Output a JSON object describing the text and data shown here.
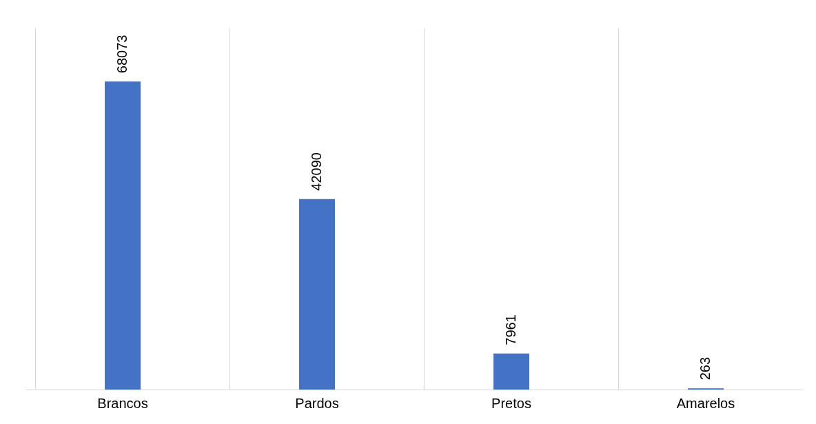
{
  "chart_data": {
    "type": "bar",
    "categories": [
      "Brancos",
      "Pardos",
      "Pretos",
      "Amarelos"
    ],
    "values": [
      68073,
      42090,
      7961,
      263
    ],
    "color": "#4472c4",
    "data_labels": true,
    "grid": "x"
  }
}
